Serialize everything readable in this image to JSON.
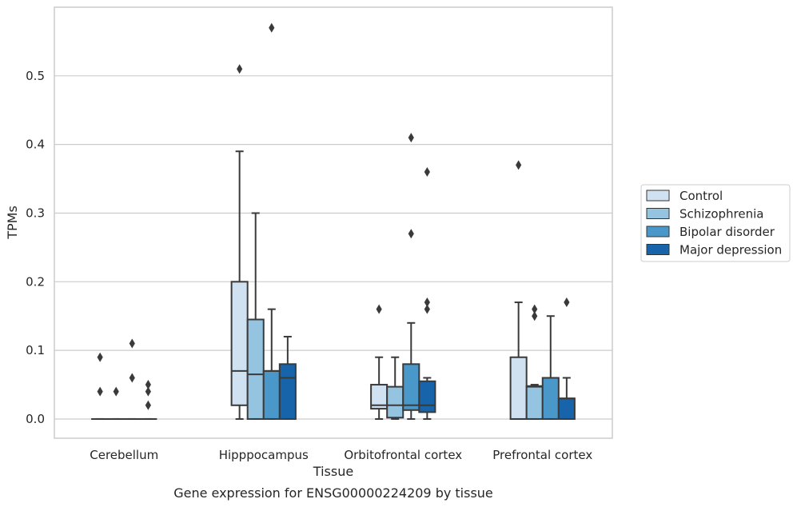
{
  "chart_data": {
    "type": "boxplot",
    "title": "",
    "xlabel": "Tissue",
    "ylabel": "TPMs",
    "caption": "Gene expression for ENSG00000224209 by tissue",
    "ylim": [
      -0.028,
      0.6
    ],
    "yticks": [
      0.0,
      0.1,
      0.2,
      0.3,
      0.4,
      0.5
    ],
    "ytick_labels": [
      "0.0",
      "0.1",
      "0.2",
      "0.3",
      "0.4",
      "0.5"
    ],
    "categories": [
      "Cerebellum",
      "Hipppocampus",
      "Orbitofrontal cortex",
      "Prefrontal cortex"
    ],
    "grid": "horizontal",
    "legend_position": "right",
    "series": [
      {
        "name": "Control",
        "color": "#d0e1f2",
        "boxes": [
          {
            "q1": 0.0,
            "median": 0.0,
            "q3": 0.0,
            "whislo": 0.0,
            "whishi": 0.0,
            "fliers": [
              0.09,
              0.04
            ]
          },
          {
            "q1": 0.02,
            "median": 0.07,
            "q3": 0.2,
            "whislo": 0.0,
            "whishi": 0.39,
            "fliers": [
              0.51
            ]
          },
          {
            "q1": 0.015,
            "median": 0.02,
            "q3": 0.05,
            "whislo": 0.0,
            "whishi": 0.09,
            "fliers": [
              0.16
            ]
          },
          {
            "q1": 0.0,
            "median": 0.0,
            "q3": 0.09,
            "whislo": 0.0,
            "whishi": 0.17,
            "fliers": [
              0.37
            ]
          }
        ]
      },
      {
        "name": "Schizophrenia",
        "color": "#94c4df",
        "boxes": [
          {
            "q1": 0.0,
            "median": 0.0,
            "q3": 0.0,
            "whislo": 0.0,
            "whishi": 0.0,
            "fliers": [
              0.04
            ]
          },
          {
            "q1": 0.0,
            "median": 0.065,
            "q3": 0.145,
            "whislo": 0.0,
            "whishi": 0.3,
            "fliers": []
          },
          {
            "q1": 0.002,
            "median": 0.02,
            "q3": 0.047,
            "whislo": 0.0,
            "whishi": 0.09,
            "fliers": []
          },
          {
            "q1": 0.0,
            "median": 0.047,
            "q3": 0.048,
            "whislo": 0.0,
            "whishi": 0.05,
            "fliers": [
              0.16,
              0.15
            ]
          }
        ]
      },
      {
        "name": "Bipolar disorder",
        "color": "#4a98c9",
        "boxes": [
          {
            "q1": 0.0,
            "median": 0.0,
            "q3": 0.0,
            "whislo": 0.0,
            "whishi": 0.0,
            "fliers": [
              0.11,
              0.06
            ]
          },
          {
            "q1": 0.0,
            "median": 0.07,
            "q3": 0.07,
            "whislo": 0.0,
            "whishi": 0.16,
            "fliers": [
              0.57
            ]
          },
          {
            "q1": 0.013,
            "median": 0.02,
            "q3": 0.08,
            "whislo": 0.0,
            "whishi": 0.14,
            "fliers": [
              0.41,
              0.27
            ]
          },
          {
            "q1": 0.0,
            "median": 0.06,
            "q3": 0.06,
            "whislo": 0.0,
            "whishi": 0.15,
            "fliers": []
          }
        ]
      },
      {
        "name": "Major depression",
        "color": "#1764ab",
        "boxes": [
          {
            "q1": 0.0,
            "median": 0.0,
            "q3": 0.0,
            "whislo": 0.0,
            "whishi": 0.0,
            "fliers": [
              0.05,
              0.04,
              0.02
            ]
          },
          {
            "q1": 0.0,
            "median": 0.06,
            "q3": 0.08,
            "whislo": 0.0,
            "whishi": 0.12,
            "fliers": []
          },
          {
            "q1": 0.01,
            "median": 0.02,
            "q3": 0.055,
            "whislo": 0.0,
            "whishi": 0.06,
            "fliers": [
              0.36,
              0.17,
              0.16
            ]
          },
          {
            "q1": 0.0,
            "median": 0.03,
            "q3": 0.03,
            "whislo": 0.0,
            "whishi": 0.06,
            "fliers": [
              0.17
            ]
          }
        ]
      }
    ]
  }
}
